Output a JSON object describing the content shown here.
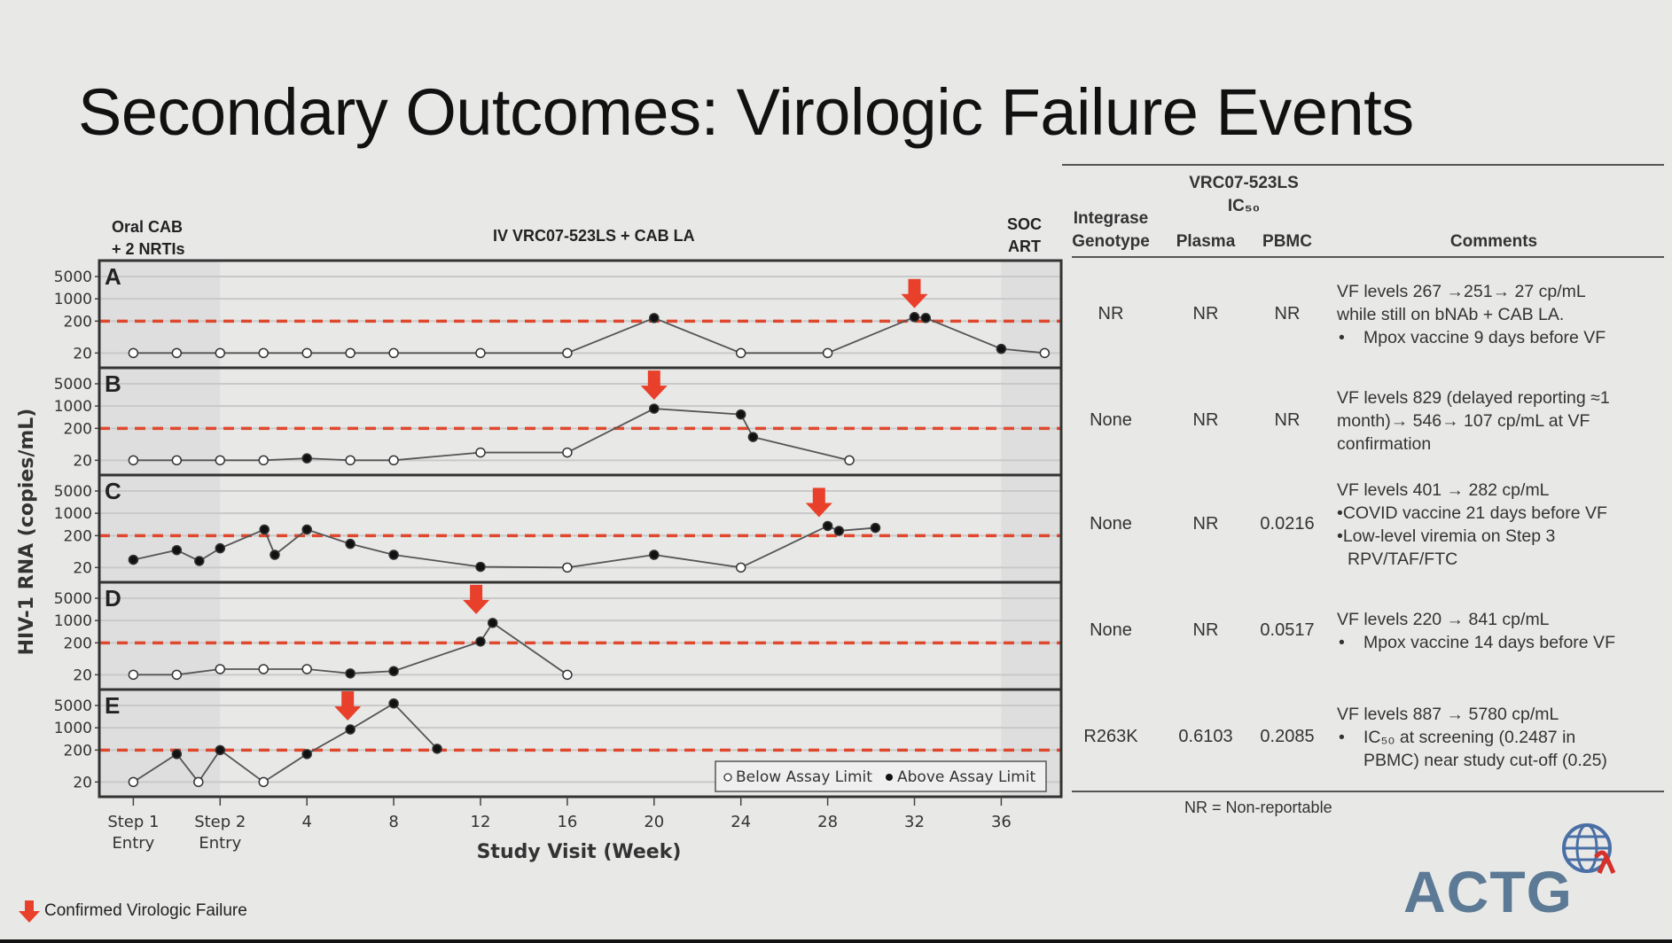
{
  "title": "Secondary Outcomes: Virologic Failure Events",
  "phases": {
    "oral_line1": "Oral CAB",
    "oral_line2": "+ 2 NRTIs",
    "iv": "IV VRC07-523LS + CAB LA",
    "soc_line1": "SOC",
    "soc_line2": "ART"
  },
  "legend_bottom": "Confirmed Virologic Failure",
  "logo": "ACTG",
  "colors": {
    "arrow": "#e8402a",
    "threshold": "#e0482e",
    "line": "#555555",
    "frame": "#333333"
  },
  "chart_data": {
    "type": "line",
    "ylabel": "HIV-1 RNA (copies/mL)",
    "xlabel": "Study Visit (Week)",
    "yscale": "log",
    "yticks": [
      5000,
      1000,
      200,
      20
    ],
    "ytick_labels": [
      "5000",
      "1000",
      "200",
      "20"
    ],
    "threshold": 200,
    "x_unit_note": "x values are positions on the visit axis: 0=Step 1 Entry, 1=Step 2 Entry, 2=Week 4, 3=Week 8 ... 10=Week 36",
    "xticks": [
      {
        "pos": 0,
        "label": "Step 1",
        "label2": "Entry"
      },
      {
        "pos": 1,
        "label": "Step 2",
        "label2": "Entry"
      },
      {
        "pos": 2,
        "label": "4"
      },
      {
        "pos": 3,
        "label": "8"
      },
      {
        "pos": 4,
        "label": "12"
      },
      {
        "pos": 5,
        "label": "16"
      },
      {
        "pos": 6,
        "label": "20"
      },
      {
        "pos": 7,
        "label": "24"
      },
      {
        "pos": 8,
        "label": "28"
      },
      {
        "pos": 9,
        "label": "32"
      },
      {
        "pos": 10,
        "label": "36"
      }
    ],
    "legend": {
      "below": "Below Assay Limit",
      "above": "Above Assay Limit",
      "placement": "bottom-right of panel E"
    },
    "panels": [
      {
        "label": "A",
        "vf_arrow": 9,
        "points": [
          [
            0,
            20,
            0
          ],
          [
            0.5,
            20,
            0
          ],
          [
            1,
            20,
            0
          ],
          [
            1.5,
            20,
            0
          ],
          [
            2,
            20,
            0
          ],
          [
            2.5,
            20,
            0
          ],
          [
            3,
            20,
            0
          ],
          [
            4,
            20,
            0
          ],
          [
            5,
            20,
            0
          ],
          [
            6,
            250,
            1
          ],
          [
            7,
            20,
            0
          ],
          [
            8,
            20,
            0
          ],
          [
            9,
            267,
            1
          ],
          [
            9.13,
            251,
            1
          ],
          [
            10,
            27,
            1
          ],
          [
            10.5,
            20,
            0
          ]
        ]
      },
      {
        "label": "B",
        "vf_arrow": 6,
        "points": [
          [
            0,
            20,
            0
          ],
          [
            0.5,
            20,
            0
          ],
          [
            1,
            20,
            0
          ],
          [
            1.5,
            20,
            0
          ],
          [
            2,
            23,
            1
          ],
          [
            2.5,
            20,
            0
          ],
          [
            3,
            20,
            0
          ],
          [
            4,
            35,
            0
          ],
          [
            5,
            35,
            0
          ],
          [
            6,
            829,
            1
          ],
          [
            7,
            546,
            1
          ],
          [
            7.14,
            107,
            1
          ],
          [
            8.25,
            20,
            0
          ]
        ]
      },
      {
        "label": "C",
        "vf_arrow": 7.9,
        "points": [
          [
            0,
            35,
            1
          ],
          [
            0.5,
            70,
            1
          ],
          [
            0.76,
            32,
            1
          ],
          [
            1,
            80,
            1
          ],
          [
            1.51,
            310,
            1
          ],
          [
            1.63,
            50,
            1
          ],
          [
            2,
            310,
            1
          ],
          [
            2.5,
            110,
            1
          ],
          [
            3,
            50,
            1
          ],
          [
            4,
            21,
            1
          ],
          [
            5,
            20,
            0
          ],
          [
            6,
            50,
            1
          ],
          [
            7,
            20,
            0
          ],
          [
            8,
            401,
            1
          ],
          [
            8.13,
            282,
            1
          ],
          [
            8.55,
            350,
            1
          ]
        ]
      },
      {
        "label": "D",
        "vf_arrow": 3.95,
        "points": [
          [
            0,
            20,
            0
          ],
          [
            0.5,
            20,
            0
          ],
          [
            1,
            30,
            0
          ],
          [
            1.5,
            30,
            0
          ],
          [
            2,
            30,
            0
          ],
          [
            2.5,
            22,
            1
          ],
          [
            3,
            26,
            1
          ],
          [
            4,
            220,
            1
          ],
          [
            4.14,
            841,
            1
          ],
          [
            5,
            20,
            0
          ]
        ]
      },
      {
        "label": "E",
        "vf_arrow": 2.47,
        "points": [
          [
            0,
            20,
            0
          ],
          [
            0.5,
            150,
            1
          ],
          [
            0.75,
            20,
            0
          ],
          [
            1,
            200,
            1
          ],
          [
            1.5,
            20,
            0
          ],
          [
            2,
            150,
            1
          ],
          [
            2.5,
            887,
            1
          ],
          [
            3,
            5780,
            1
          ],
          [
            3.5,
            220,
            1
          ]
        ]
      }
    ]
  },
  "table": {
    "group_header_line1": "VRC07-523LS",
    "group_header_line2": "IC₅₀",
    "headers": {
      "genotype_line1": "Integrase",
      "genotype_line2": "Genotype",
      "plasma": "Plasma",
      "pbmc": "PBMC",
      "comments": "Comments"
    },
    "rows": [
      {
        "genotype": "NR",
        "plasma": "NR",
        "pbmc": "NR",
        "comments": [
          {
            "text": "VF levels 267 →251→ 27 cp/mL",
            "bullet": false
          },
          {
            "text": "while still on bNAb + CAB LA.",
            "bullet": false
          },
          {
            "text": "Mpox vaccine 9 days before VF",
            "bullet": true
          }
        ]
      },
      {
        "genotype": "None",
        "plasma": "NR",
        "pbmc": "NR",
        "comments": [
          {
            "text": "VF levels 829 (delayed reporting ≈1",
            "bullet": false
          },
          {
            "text": "month)→ 546→ 107 cp/mL at VF",
            "bullet": false
          },
          {
            "text": "confirmation",
            "bullet": false
          }
        ]
      },
      {
        "genotype": "None",
        "plasma": "NR",
        "pbmc": "0.0216",
        "comments": [
          {
            "text": "VF levels 401 → 282 cp/mL",
            "bullet": false
          },
          {
            "text": "•COVID vaccine 21 days before VF",
            "bullet": false
          },
          {
            "text": "•Low-level viremia on Step 3",
            "bullet": false
          },
          {
            "text": "  RPV/TAF/FTC",
            "bullet": false
          }
        ]
      },
      {
        "genotype": "None",
        "plasma": "NR",
        "pbmc": "0.0517",
        "comments": [
          {
            "text": "VF levels 220 → 841 cp/mL",
            "bullet": false
          },
          {
            "text": "Mpox vaccine 14 days before VF",
            "bullet": true
          }
        ]
      },
      {
        "genotype": "R263K",
        "plasma": "0.6103",
        "pbmc": "0.2085",
        "comments": [
          {
            "text": "VF levels 887 → 5780 cp/mL",
            "bullet": false
          },
          {
            "text": "IC₅₀ at screening (0.2487 in",
            "bullet": true
          },
          {
            "text": "PBMC) near study cut-off (0.25)",
            "bullet": "cont"
          }
        ]
      }
    ],
    "footnote": "NR = Non-reportable"
  }
}
